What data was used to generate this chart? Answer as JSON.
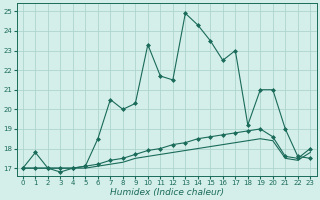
{
  "xlabel": "Humidex (Indice chaleur)",
  "x": [
    0,
    1,
    2,
    3,
    4,
    5,
    6,
    7,
    8,
    9,
    10,
    11,
    12,
    13,
    14,
    15,
    16,
    17,
    18,
    19,
    20,
    21,
    22,
    23
  ],
  "line1": [
    17.0,
    17.8,
    17.0,
    16.8,
    17.0,
    17.1,
    18.5,
    20.5,
    20.0,
    20.3,
    23.3,
    21.7,
    21.5,
    24.9,
    24.3,
    23.5,
    22.5,
    23.0,
    19.2,
    21.0,
    21.0,
    19.0,
    17.6,
    17.5
  ],
  "line2": [
    17.0,
    17.0,
    17.0,
    17.0,
    17.0,
    17.1,
    17.2,
    17.4,
    17.5,
    17.7,
    17.9,
    18.0,
    18.2,
    18.3,
    18.5,
    18.6,
    18.7,
    18.8,
    18.9,
    19.0,
    18.6,
    17.6,
    17.5,
    18.0
  ],
  "line3": [
    17.0,
    17.0,
    17.0,
    17.0,
    17.0,
    17.0,
    17.1,
    17.2,
    17.3,
    17.5,
    17.6,
    17.7,
    17.8,
    17.9,
    18.0,
    18.1,
    18.2,
    18.3,
    18.4,
    18.5,
    18.4,
    17.5,
    17.4,
    17.8
  ],
  "line_color": "#1a6b5a",
  "bg_color": "#d4eeea",
  "grid_color": "#aed4ce",
  "ylim": [
    16.6,
    25.4
  ],
  "xlim": [
    -0.5,
    23.5
  ],
  "yticks": [
    17,
    18,
    19,
    20,
    21,
    22,
    23,
    24,
    25
  ],
  "xticks": [
    0,
    1,
    2,
    3,
    4,
    5,
    6,
    7,
    8,
    9,
    10,
    11,
    12,
    13,
    14,
    15,
    16,
    17,
    18,
    19,
    20,
    21,
    22,
    23
  ],
  "marker": "D",
  "markersize": 2.0,
  "linewidth": 0.8,
  "tick_fontsize": 5.0,
  "xlabel_fontsize": 6.5
}
